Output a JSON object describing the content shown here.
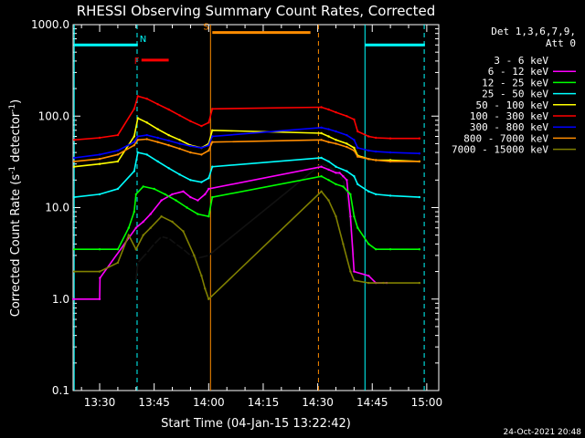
{
  "chart_data": {
    "type": "line",
    "title": "RHESSI Observing Summary Count Rates, Corrected",
    "xlabel": "Start Time (04-Jan-15 13:22:42)",
    "ylabel": "Corrected Count Rate (s⁻¹ detector⁻¹)",
    "ylabel_main": "Corrected Count Rate (s",
    "ylabel_sup1": "-1",
    "ylabel_mid": " detector",
    "ylabel_sup2": "-1",
    "ylabel_end": ")",
    "yscale": "log",
    "ylim": [
      0.1,
      1000
    ],
    "xlim_minutes": [
      22.7,
      123.3
    ],
    "ytick_labels": [
      "0.1",
      "1.0",
      "10.0",
      "100.0",
      "1000.0"
    ],
    "ytick_values": [
      0.1,
      1,
      10,
      100,
      1000
    ],
    "xtick_labels": [
      "13:30",
      "13:45",
      "14:00",
      "14:15",
      "14:30",
      "14:45",
      "15:00"
    ],
    "xtick_minutes": [
      30,
      45,
      60,
      75,
      90,
      105,
      120
    ],
    "grid": false,
    "legend_position": "right",
    "legend_header": [
      "Det 1,3,6,7,9,",
      "Att 0"
    ],
    "footer_date": "24-Oct-2021 20:48",
    "series": [
      {
        "name": "3 - 6 keV",
        "color": "#000000",
        "points": [
          [
            40,
            1.6
          ],
          [
            40.5,
            2.5
          ],
          [
            43,
            3.2
          ],
          [
            45,
            4
          ],
          [
            47,
            4.8
          ],
          [
            49,
            4.6
          ],
          [
            51,
            4
          ],
          [
            53,
            3.5
          ],
          [
            55,
            3
          ],
          [
            57,
            2.8
          ],
          [
            60,
            3
          ],
          [
            91,
            30
          ],
          [
            93,
            28
          ],
          [
            95,
            25
          ],
          [
            96,
            22
          ],
          [
            97,
            20
          ],
          [
            98,
            14
          ],
          [
            99,
            6
          ],
          [
            100,
            3
          ]
        ]
      },
      {
        "name": "6 - 12 keV",
        "color": "#ff00ff",
        "points": [
          [
            22.7,
            1
          ],
          [
            30,
            1
          ],
          [
            30.1,
            1.7
          ],
          [
            40,
            6
          ],
          [
            42,
            7
          ],
          [
            44,
            8.5
          ],
          [
            47,
            12
          ],
          [
            50,
            14
          ],
          [
            53,
            15
          ],
          [
            55,
            13
          ],
          [
            57,
            12
          ],
          [
            59,
            14
          ],
          [
            60,
            16
          ],
          [
            91,
            28
          ],
          [
            93,
            26
          ],
          [
            95,
            24
          ],
          [
            96,
            24
          ],
          [
            97,
            22
          ],
          [
            98,
            20
          ],
          [
            99,
            8
          ],
          [
            100,
            2
          ],
          [
            104,
            1.8
          ],
          [
            106,
            1.5
          ],
          [
            109,
            1.5
          ]
        ]
      },
      {
        "name": "12 - 25 keV",
        "color": "#00ff00",
        "points": [
          [
            23,
            3.5
          ],
          [
            30,
            3.5
          ],
          [
            35,
            3.5
          ],
          [
            38,
            6
          ],
          [
            39.5,
            9
          ],
          [
            40,
            14
          ],
          [
            42,
            17
          ],
          [
            45,
            16
          ],
          [
            48,
            14
          ],
          [
            51,
            12
          ],
          [
            54,
            10
          ],
          [
            57,
            8.5
          ],
          [
            60,
            8
          ],
          [
            61,
            13
          ],
          [
            91,
            22
          ],
          [
            93,
            20
          ],
          [
            95,
            18
          ],
          [
            97,
            17
          ],
          [
            99,
            14
          ],
          [
            100,
            8
          ],
          [
            101,
            6
          ],
          [
            104,
            4
          ],
          [
            106,
            3.5
          ],
          [
            110,
            3.5
          ],
          [
            118,
            3.5
          ]
        ]
      },
      {
        "name": "25 - 50 keV",
        "color": "#00ffff",
        "points": [
          [
            23,
            13
          ],
          [
            30,
            14
          ],
          [
            35,
            16
          ],
          [
            39.5,
            25
          ],
          [
            40.5,
            40
          ],
          [
            43,
            38
          ],
          [
            46,
            32
          ],
          [
            49,
            27
          ],
          [
            52,
            23
          ],
          [
            55,
            20
          ],
          [
            58,
            19
          ],
          [
            60,
            21
          ],
          [
            61,
            28
          ],
          [
            91,
            35
          ],
          [
            93,
            32
          ],
          [
            95,
            28
          ],
          [
            98,
            25
          ],
          [
            100,
            22
          ],
          [
            101,
            18
          ],
          [
            104,
            15
          ],
          [
            106,
            14
          ],
          [
            110,
            13.5
          ],
          [
            118,
            13
          ]
        ]
      },
      {
        "name": "50 - 100 keV",
        "color": "#ffff00",
        "points": [
          [
            23,
            28
          ],
          [
            30,
            30
          ],
          [
            35,
            32
          ],
          [
            39.5,
            60
          ],
          [
            40.5,
            95
          ],
          [
            43,
            85
          ],
          [
            46,
            72
          ],
          [
            49,
            62
          ],
          [
            52,
            55
          ],
          [
            55,
            48
          ],
          [
            58,
            45
          ],
          [
            60,
            50
          ],
          [
            61,
            70
          ],
          [
            91,
            65
          ],
          [
            93,
            60
          ],
          [
            95,
            55
          ],
          [
            98,
            50
          ],
          [
            100,
            45
          ],
          [
            101,
            37
          ],
          [
            104,
            34
          ],
          [
            106,
            33
          ],
          [
            110,
            33
          ],
          [
            118,
            32
          ]
        ]
      },
      {
        "name": "100 - 300 keV",
        "color": "#ff0000",
        "points": [
          [
            23,
            55
          ],
          [
            30,
            58
          ],
          [
            35,
            62
          ],
          [
            39.5,
            120
          ],
          [
            40.5,
            165
          ],
          [
            43,
            155
          ],
          [
            46,
            135
          ],
          [
            49,
            118
          ],
          [
            52,
            102
          ],
          [
            55,
            88
          ],
          [
            58,
            78
          ],
          [
            60,
            85
          ],
          [
            61,
            120
          ],
          [
            91,
            125
          ],
          [
            93,
            118
          ],
          [
            95,
            110
          ],
          [
            98,
            100
          ],
          [
            100,
            92
          ],
          [
            101,
            68
          ],
          [
            104,
            60
          ],
          [
            106,
            58
          ],
          [
            110,
            57
          ],
          [
            118,
            57
          ]
        ]
      },
      {
        "name": "300 - 800 keV",
        "color": "#0000ff",
        "points": [
          [
            23,
            35
          ],
          [
            30,
            38
          ],
          [
            35,
            42
          ],
          [
            39.5,
            52
          ],
          [
            40.5,
            60
          ],
          [
            43,
            62
          ],
          [
            46,
            58
          ],
          [
            49,
            54
          ],
          [
            52,
            50
          ],
          [
            55,
            47
          ],
          [
            58,
            45
          ],
          [
            60,
            48
          ],
          [
            61,
            60
          ],
          [
            91,
            75
          ],
          [
            93,
            72
          ],
          [
            95,
            68
          ],
          [
            98,
            62
          ],
          [
            100,
            55
          ],
          [
            101,
            45
          ],
          [
            104,
            42
          ],
          [
            106,
            41
          ],
          [
            110,
            40
          ],
          [
            118,
            39
          ]
        ]
      },
      {
        "name": "800 - 7000 keV",
        "color": "#ff8c00",
        "points": [
          [
            23,
            32
          ],
          [
            30,
            34
          ],
          [
            35,
            38
          ],
          [
            39.5,
            48
          ],
          [
            40.5,
            55
          ],
          [
            43,
            56
          ],
          [
            46,
            52
          ],
          [
            49,
            48
          ],
          [
            52,
            44
          ],
          [
            55,
            40
          ],
          [
            58,
            38
          ],
          [
            60,
            42
          ],
          [
            61,
            52
          ],
          [
            91,
            55
          ],
          [
            93,
            52
          ],
          [
            95,
            50
          ],
          [
            98,
            46
          ],
          [
            100,
            42
          ],
          [
            101,
            36
          ],
          [
            104,
            34
          ],
          [
            106,
            33
          ],
          [
            110,
            32
          ],
          [
            118,
            32
          ]
        ]
      },
      {
        "name": "7000 - 15000 keV",
        "color": "#808000",
        "points": [
          [
            23,
            2
          ],
          [
            30,
            2
          ],
          [
            35,
            2.5
          ],
          [
            38,
            5
          ],
          [
            40,
            3.5
          ],
          [
            42,
            5
          ],
          [
            44,
            6
          ],
          [
            47,
            8
          ],
          [
            50,
            7
          ],
          [
            53,
            5.5
          ],
          [
            56,
            3
          ],
          [
            58,
            1.8
          ],
          [
            59,
            1.3
          ],
          [
            60,
            1
          ],
          [
            91,
            15
          ],
          [
            93,
            12
          ],
          [
            95,
            8
          ],
          [
            97,
            4
          ],
          [
            99,
            2
          ],
          [
            100,
            1.6
          ],
          [
            104,
            1.5
          ],
          [
            108,
            1.5
          ],
          [
            118,
            1.5
          ]
        ]
      }
    ],
    "annotations": {
      "flag_lines": [
        {
          "label": "",
          "color": "#00ffff",
          "x_start": 23,
          "x_end": 40.5,
          "y": 600
        },
        {
          "label": "N",
          "color": "#00ffff",
          "x_start": null,
          "x_end": null,
          "y": 600,
          "label_x": 41
        },
        {
          "label": "F",
          "color": "#ff0000",
          "x_start": 41.5,
          "x_end": 49,
          "y": 410,
          "label_x": 39.5
        },
        {
          "label": "S",
          "color": "#ff8c00",
          "x_start": 61,
          "x_end": 88,
          "y": 820,
          "label_x": 58.5
        },
        {
          "label": "",
          "color": "#00ffff",
          "x_start": 103,
          "x_end": 119.5,
          "y": 600
        }
      ],
      "vlines": [
        {
          "x": 23,
          "color": "#00ffff",
          "dashed": false
        },
        {
          "x": 40.3,
          "color": "#00ffff",
          "dashed": true
        },
        {
          "x": 60.5,
          "color": "#ff8c00",
          "dashed": false
        },
        {
          "x": 90.2,
          "color": "#ff8c00",
          "dashed": true
        },
        {
          "x": 103,
          "color": "#00ffff",
          "dashed": false
        },
        {
          "x": 119.3,
          "color": "#00ffff",
          "dashed": true
        }
      ]
    }
  }
}
